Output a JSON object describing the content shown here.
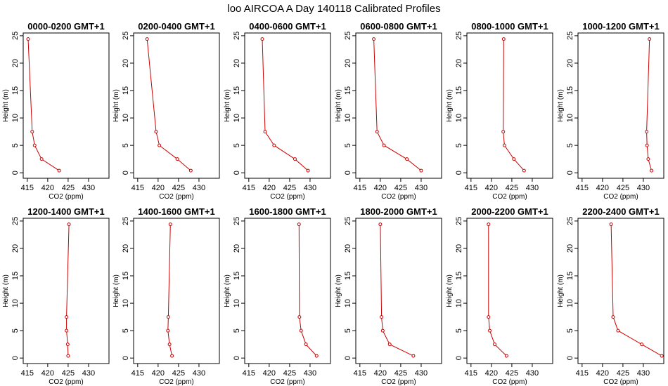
{
  "figure": {
    "title": "loo AIRCOA A  Day 140118  Calibrated Profiles"
  },
  "chart_data": [
    {
      "type": "line",
      "title": "0000-0200 GMT+1",
      "xlabel": "CO2 (ppm)",
      "ylabel": "Height (m)",
      "xlim": [
        414,
        435
      ],
      "ylim": [
        -1,
        25.5
      ],
      "xticks": [
        415,
        420,
        425,
        430
      ],
      "yticks": [
        0,
        5,
        10,
        15,
        20,
        25
      ],
      "series": [
        {
          "color": "#cc0000",
          "x": [
            415.2,
            416.2,
            416.8,
            418.5,
            422.8
          ],
          "y": [
            24.4,
            7.5,
            5.0,
            2.5,
            0.4
          ]
        }
      ]
    },
    {
      "type": "line",
      "title": "0200-0400 GMT+1",
      "xlabel": "CO2 (ppm)",
      "ylabel": "Height (m)",
      "xlim": [
        414,
        435
      ],
      "ylim": [
        -1,
        25.5
      ],
      "xticks": [
        415,
        420,
        425,
        430
      ],
      "yticks": [
        0,
        5,
        10,
        15,
        20,
        25
      ],
      "series": [
        {
          "color": "#cc0000",
          "x": [
            417.3,
            419.5,
            420.3,
            424.7,
            428.0
          ],
          "y": [
            24.4,
            7.5,
            5.0,
            2.5,
            0.4
          ]
        }
      ]
    },
    {
      "type": "line",
      "title": "0400-0600 GMT+1",
      "xlabel": "CO2 (ppm)",
      "ylabel": "Height (m)",
      "xlim": [
        414,
        435
      ],
      "ylim": [
        -1,
        25.5
      ],
      "xticks": [
        415,
        420,
        425,
        430
      ],
      "yticks": [
        0,
        5,
        10,
        15,
        20,
        25
      ],
      "series": [
        {
          "color": "#cc0000",
          "x": [
            418.3,
            419.0,
            421.2,
            426.3,
            429.5
          ],
          "y": [
            24.4,
            7.5,
            5.0,
            2.5,
            0.4
          ]
        }
      ]
    },
    {
      "type": "line",
      "title": "0600-0800 GMT+1",
      "xlabel": "CO2 (ppm)",
      "ylabel": "Height (m)",
      "xlim": [
        414,
        435
      ],
      "ylim": [
        -1,
        25.5
      ],
      "xticks": [
        415,
        420,
        425,
        430
      ],
      "yticks": [
        0,
        5,
        10,
        15,
        20,
        25
      ],
      "series": [
        {
          "color": "#cc0000",
          "x": [
            418.4,
            419.2,
            420.9,
            426.5,
            430.0
          ],
          "y": [
            24.4,
            7.5,
            5.0,
            2.5,
            0.4
          ]
        }
      ]
    },
    {
      "type": "line",
      "title": "0800-1000 GMT+1",
      "xlabel": "CO2 (ppm)",
      "ylabel": "Height (m)",
      "xlim": [
        414,
        435
      ],
      "ylim": [
        -1,
        25.5
      ],
      "xticks": [
        415,
        420,
        425,
        430
      ],
      "yticks": [
        0,
        5,
        10,
        15,
        20,
        25
      ],
      "series": [
        {
          "color": "#cc0000",
          "x": [
            423.0,
            422.9,
            423.2,
            425.5,
            428.0
          ],
          "y": [
            24.4,
            7.5,
            5.0,
            2.5,
            0.4
          ]
        }
      ]
    },
    {
      "type": "line",
      "title": "1000-1200 GMT+1",
      "xlabel": "CO2 (ppm)",
      "ylabel": "Height (m)",
      "xlim": [
        414,
        435
      ],
      "ylim": [
        -1,
        25.5
      ],
      "xticks": [
        415,
        420,
        425,
        430
      ],
      "yticks": [
        0,
        5,
        10,
        15,
        20,
        25
      ],
      "series": [
        {
          "color": "#cc0000",
          "x": [
            431.5,
            430.8,
            430.9,
            431.2,
            432.0
          ],
          "y": [
            24.4,
            7.5,
            5.0,
            2.5,
            0.4
          ]
        }
      ]
    },
    {
      "type": "line",
      "title": "1200-1400 GMT+1",
      "xlabel": "CO2 (ppm)",
      "ylabel": "Height (m)",
      "xlim": [
        414,
        435
      ],
      "ylim": [
        -1,
        25.5
      ],
      "xticks": [
        415,
        420,
        425,
        430
      ],
      "yticks": [
        0,
        5,
        10,
        15,
        20,
        25
      ],
      "series": [
        {
          "color": "#cc0000",
          "x": [
            425.2,
            424.6,
            424.6,
            424.9,
            425.0
          ],
          "y": [
            24.4,
            7.5,
            5.0,
            2.5,
            0.4
          ]
        }
      ]
    },
    {
      "type": "line",
      "title": "1400-1600 GMT+1",
      "xlabel": "CO2 (ppm)",
      "ylabel": "Height (m)",
      "xlim": [
        414,
        435
      ],
      "ylim": [
        -1,
        25.5
      ],
      "xticks": [
        415,
        420,
        425,
        430
      ],
      "yticks": [
        0,
        5,
        10,
        15,
        20,
        25
      ],
      "series": [
        {
          "color": "#cc0000",
          "x": [
            423.0,
            422.5,
            422.4,
            422.8,
            423.4
          ],
          "y": [
            24.4,
            7.5,
            5.0,
            2.5,
            0.4
          ]
        }
      ]
    },
    {
      "type": "line",
      "title": "1600-1800 GMT+1",
      "xlabel": "CO2 (ppm)",
      "ylabel": "Height (m)",
      "xlim": [
        414,
        435
      ],
      "ylim": [
        -1,
        25.5
      ],
      "xticks": [
        415,
        420,
        425,
        430
      ],
      "yticks": [
        0,
        5,
        10,
        15,
        20,
        25
      ],
      "series": [
        {
          "color": "#cc0000",
          "x": [
            427.3,
            427.4,
            427.8,
            429.0,
            431.6
          ],
          "y": [
            24.4,
            7.5,
            5.0,
            2.5,
            0.4
          ]
        }
      ]
    },
    {
      "type": "line",
      "title": "1800-2000 GMT+1",
      "xlabel": "CO2 (ppm)",
      "ylabel": "Height (m)",
      "xlim": [
        414,
        435
      ],
      "ylim": [
        -1,
        25.5
      ],
      "xticks": [
        415,
        420,
        425,
        430
      ],
      "yticks": [
        0,
        5,
        10,
        15,
        20,
        25
      ],
      "series": [
        {
          "color": "#cc0000",
          "x": [
            420.0,
            420.3,
            420.6,
            422.3,
            428.1
          ],
          "y": [
            24.4,
            7.5,
            5.0,
            2.5,
            0.4
          ]
        }
      ]
    },
    {
      "type": "line",
      "title": "2000-2200 GMT+1",
      "xlabel": "CO2 (ppm)",
      "ylabel": "Height (m)",
      "xlim": [
        414,
        435
      ],
      "ylim": [
        -1,
        25.5
      ],
      "xticks": [
        415,
        420,
        425,
        430
      ],
      "yticks": [
        0,
        5,
        10,
        15,
        20,
        25
      ],
      "series": [
        {
          "color": "#cc0000",
          "x": [
            419.3,
            419.3,
            419.6,
            420.8,
            423.7
          ],
          "y": [
            24.4,
            7.5,
            5.0,
            2.5,
            0.4
          ]
        }
      ]
    },
    {
      "type": "line",
      "title": "2200-2400 GMT+1",
      "xlabel": "CO2 (ppm)",
      "ylabel": "Height (m)",
      "xlim": [
        414,
        435
      ],
      "ylim": [
        -1,
        25.5
      ],
      "xticks": [
        415,
        420,
        425,
        430
      ],
      "yticks": [
        0,
        5,
        10,
        15,
        20,
        25
      ],
      "series": [
        {
          "color": "#cc0000",
          "x": [
            422.1,
            422.6,
            423.8,
            429.6,
            434.5
          ],
          "y": [
            24.4,
            7.5,
            5.0,
            2.5,
            0.4
          ]
        }
      ]
    }
  ]
}
